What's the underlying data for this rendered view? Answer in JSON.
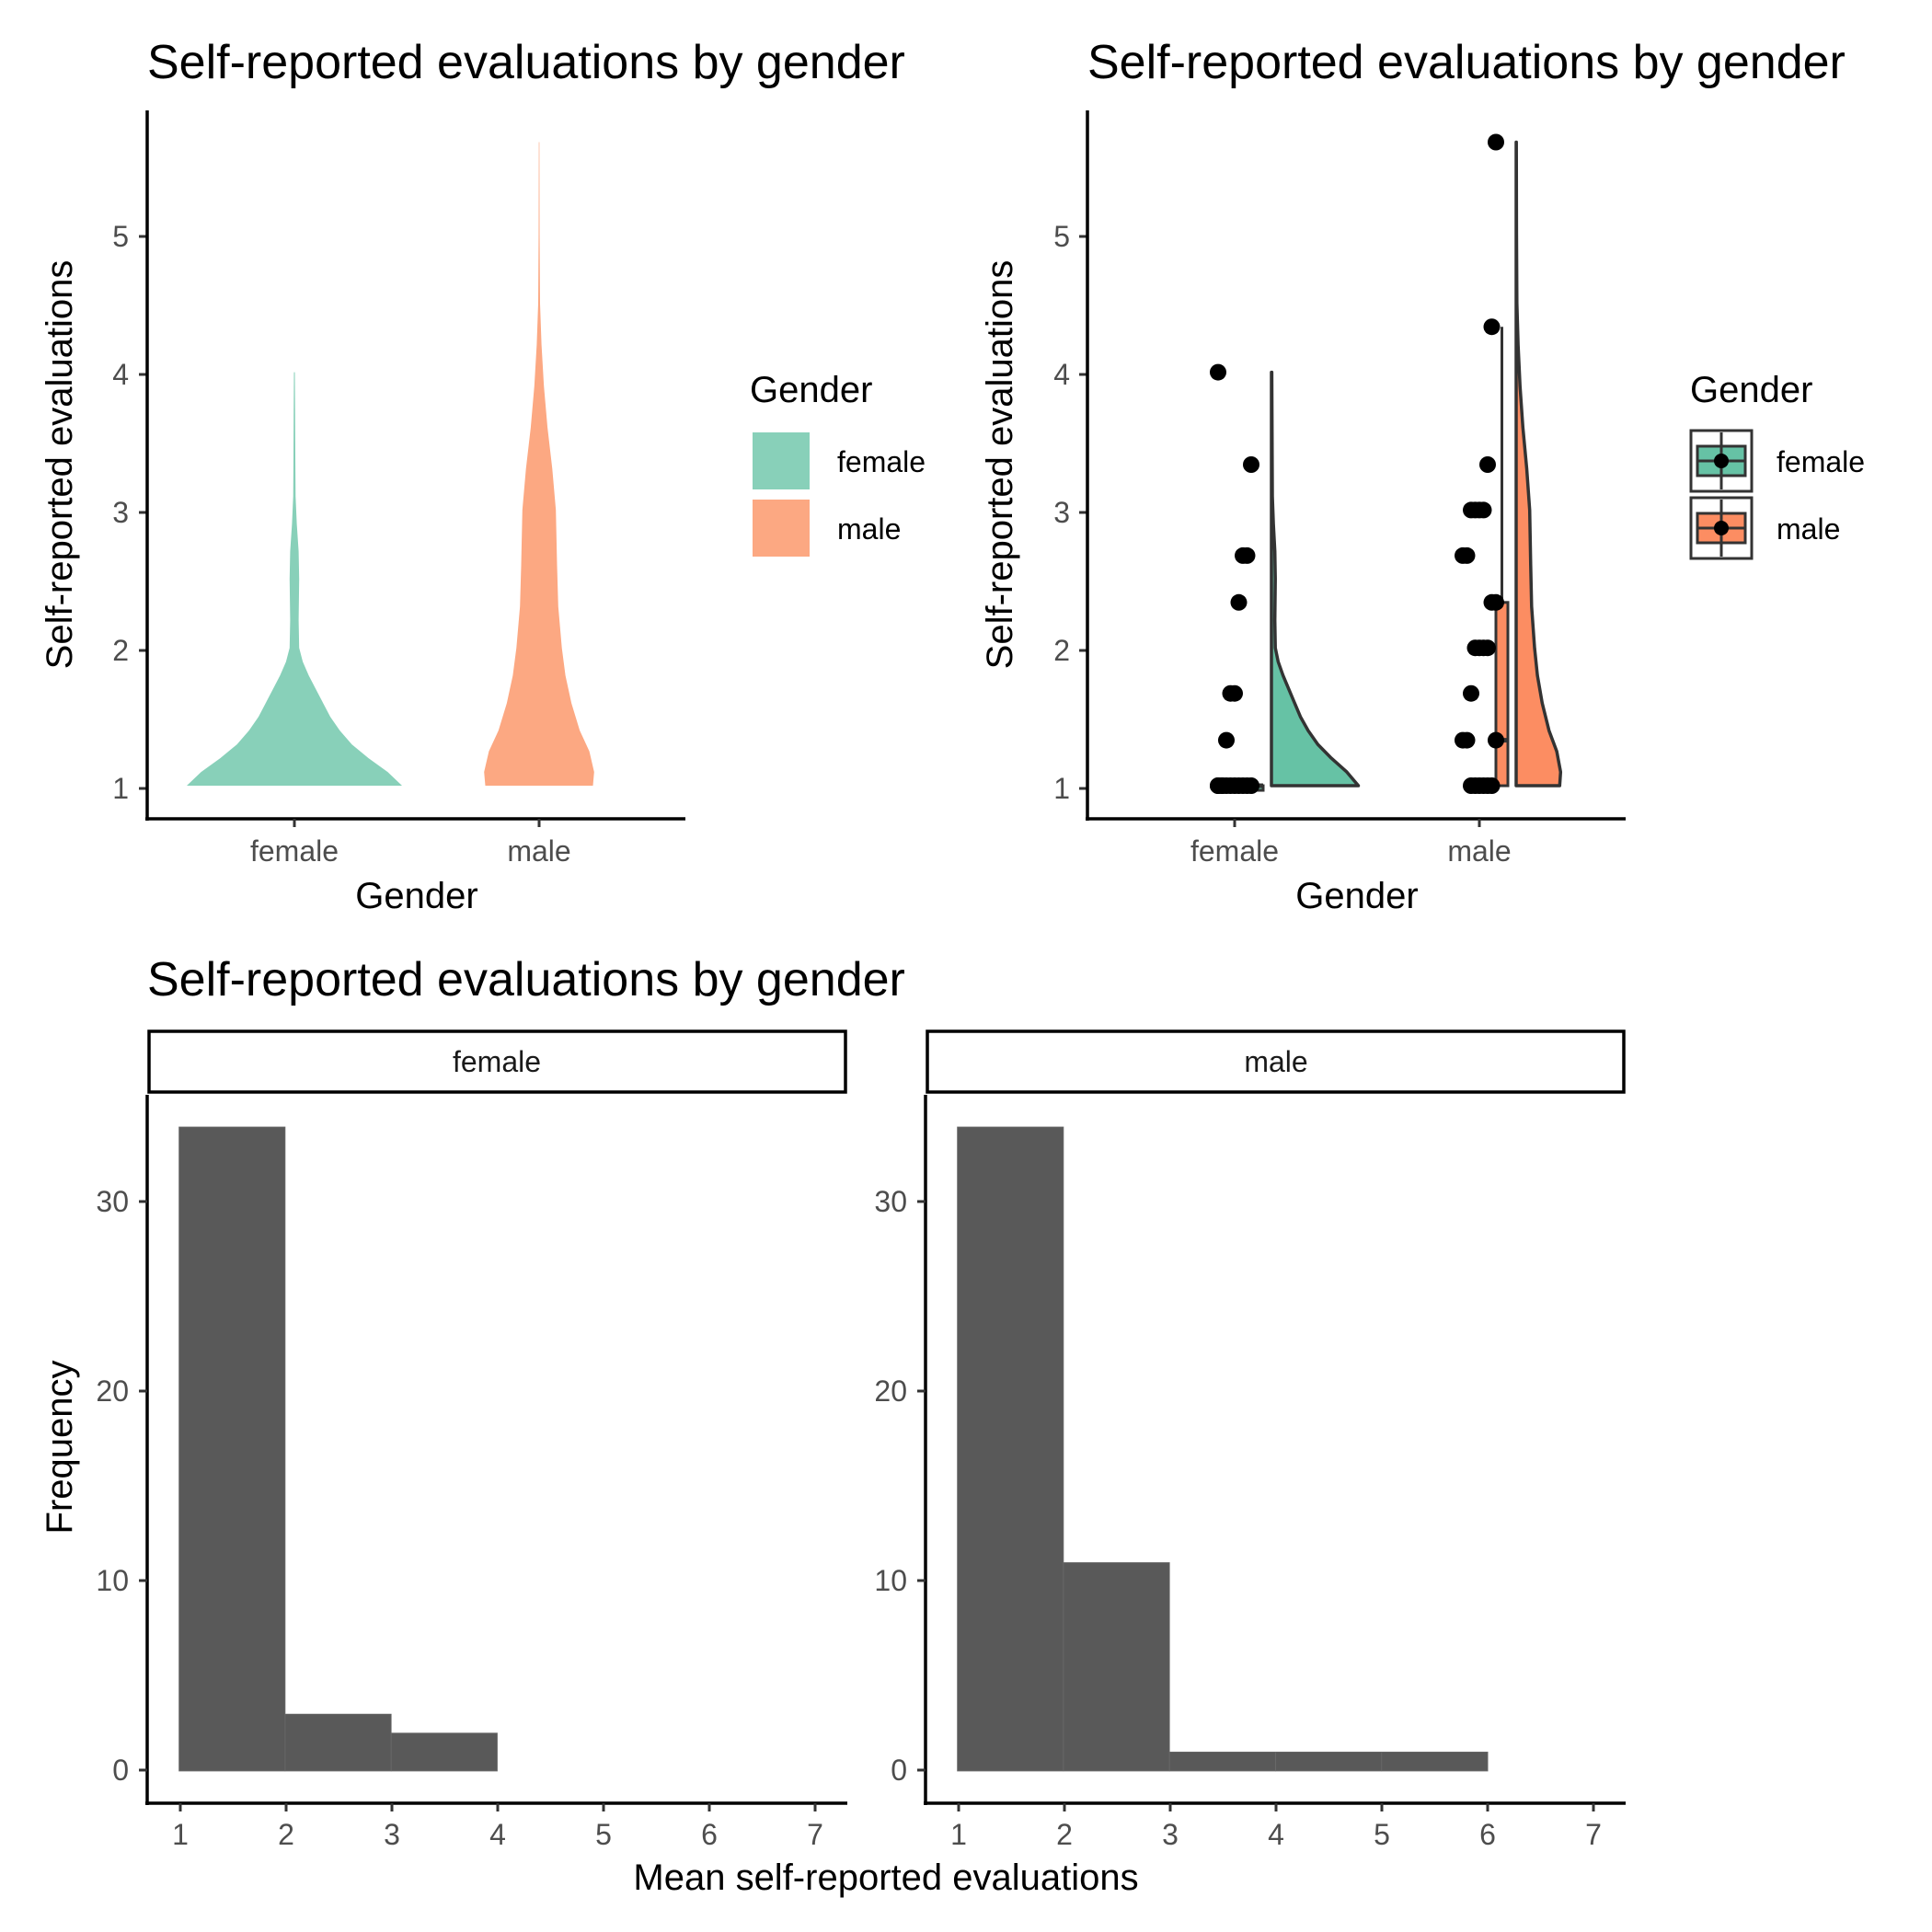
{
  "chart_data": [
    {
      "type": "violin",
      "title": "Self-reported evaluations by gender",
      "xlabel": "Gender",
      "ylabel": "Self-reported evaluations",
      "categories": [
        "female",
        "male"
      ],
      "ylim": [
        0.76,
        5.9
      ],
      "yticks": [
        "1",
        "2",
        "3",
        "4",
        "5"
      ],
      "legend": {
        "title": "Gender",
        "position": "right",
        "entries": [
          {
            "label": "female",
            "color": "#88d0b9"
          },
          {
            "label": "male",
            "color": "#fca882"
          }
        ]
      },
      "grid": false,
      "series": [
        {
          "category": "female",
          "color": "#88d0b9",
          "density": [
            [
              1.0,
              0.9
            ],
            [
              1.1,
              0.78
            ],
            [
              1.2,
              0.62
            ],
            [
              1.3,
              0.48
            ],
            [
              1.4,
              0.38
            ],
            [
              1.5,
              0.3
            ],
            [
              1.6,
              0.24
            ],
            [
              1.7,
              0.18
            ],
            [
              1.8,
              0.12
            ],
            [
              1.9,
              0.07
            ],
            [
              2.0,
              0.04
            ],
            [
              2.2,
              0.035
            ],
            [
              2.5,
              0.04
            ],
            [
              2.7,
              0.035
            ],
            [
              2.9,
              0.02
            ],
            [
              3.1,
              0.01
            ],
            [
              3.4,
              0.008
            ],
            [
              3.7,
              0.006
            ],
            [
              4.0,
              0.004
            ]
          ]
        },
        {
          "category": "male",
          "color": "#fca882",
          "density": [
            [
              1.0,
              0.45
            ],
            [
              1.1,
              0.46
            ],
            [
              1.25,
              0.42
            ],
            [
              1.4,
              0.34
            ],
            [
              1.6,
              0.27
            ],
            [
              1.8,
              0.22
            ],
            [
              2.0,
              0.19
            ],
            [
              2.3,
              0.16
            ],
            [
              2.6,
              0.15
            ],
            [
              3.0,
              0.14
            ],
            [
              3.3,
              0.11
            ],
            [
              3.6,
              0.07
            ],
            [
              3.9,
              0.04
            ],
            [
              4.2,
              0.02
            ],
            [
              4.5,
              0.008
            ],
            [
              5.0,
              0.004
            ],
            [
              5.67,
              0.002
            ]
          ]
        }
      ]
    },
    {
      "type": "raincloud",
      "title": "Self-reported evaluations by gender",
      "xlabel": "Gender",
      "ylabel": "Self-reported evaluations",
      "categories": [
        "female",
        "male"
      ],
      "ylim": [
        0.76,
        5.9
      ],
      "yticks": [
        "1",
        "2",
        "3",
        "4",
        "5"
      ],
      "legend": {
        "title": "Gender",
        "position": "right",
        "entries": [
          {
            "label": "female",
            "color": "#66c2a5"
          },
          {
            "label": "male",
            "color": "#fc8d62"
          }
        ]
      },
      "grid": false,
      "series": [
        {
          "category": "female",
          "color": "#66c2a5",
          "points": [
            1.0,
            1.0,
            1.0,
            1.0,
            1.0,
            1.0,
            1.0,
            1.0,
            1.0,
            1.0,
            1.0,
            1.33,
            1.67,
            1.67,
            2.33,
            2.67,
            2.67,
            3.33,
            4.0
          ],
          "box": {
            "min": 1.0,
            "q1": 1.0,
            "median": 1.0,
            "q3": 1.0,
            "max": 1.0
          },
          "density": [
            [
              1.0,
              0.9
            ],
            [
              1.1,
              0.78
            ],
            [
              1.2,
              0.62
            ],
            [
              1.3,
              0.48
            ],
            [
              1.4,
              0.38
            ],
            [
              1.5,
              0.3
            ],
            [
              1.6,
              0.24
            ],
            [
              1.7,
              0.18
            ],
            [
              1.8,
              0.12
            ],
            [
              1.9,
              0.07
            ],
            [
              2.0,
              0.04
            ],
            [
              2.2,
              0.035
            ],
            [
              2.5,
              0.04
            ],
            [
              2.7,
              0.035
            ],
            [
              2.9,
              0.02
            ],
            [
              3.1,
              0.01
            ],
            [
              3.4,
              0.008
            ],
            [
              3.7,
              0.006
            ],
            [
              4.0,
              0.004
            ]
          ]
        },
        {
          "category": "male",
          "color": "#fc8d62",
          "points": [
            1.0,
            1.0,
            1.0,
            1.0,
            1.0,
            1.0,
            1.33,
            1.33,
            1.33,
            1.67,
            2.0,
            2.0,
            2.0,
            2.0,
            2.33,
            2.33,
            2.67,
            2.67,
            3.0,
            3.0,
            3.0,
            3.0,
            3.33,
            4.33,
            5.67
          ],
          "box": {
            "min": 1.0,
            "q1": 1.0,
            "median": 1.33,
            "q3": 2.33,
            "max": 4.33
          },
          "density": [
            [
              1.0,
              0.45
            ],
            [
              1.1,
              0.46
            ],
            [
              1.25,
              0.42
            ],
            [
              1.4,
              0.34
            ],
            [
              1.6,
              0.27
            ],
            [
              1.8,
              0.22
            ],
            [
              2.0,
              0.19
            ],
            [
              2.3,
              0.16
            ],
            [
              2.6,
              0.15
            ],
            [
              3.0,
              0.14
            ],
            [
              3.3,
              0.11
            ],
            [
              3.6,
              0.07
            ],
            [
              3.9,
              0.04
            ],
            [
              4.2,
              0.02
            ],
            [
              4.5,
              0.008
            ],
            [
              5.0,
              0.004
            ],
            [
              5.67,
              0.002
            ]
          ]
        }
      ]
    },
    {
      "type": "bar",
      "subtype": "faceted-histogram",
      "title": "Self-reported evaluations by gender",
      "xlabel": "Mean self-reported evaluations",
      "ylabel": "Frequency",
      "xlim": [
        0.7,
        7.3
      ],
      "ylim": [
        -1.7,
        35.7
      ],
      "xticks": [
        "1",
        "2",
        "3",
        "4",
        "5",
        "6",
        "7"
      ],
      "yticks": [
        "0",
        "10",
        "20",
        "30"
      ],
      "bar_color": "#595959",
      "grid": false,
      "facets": [
        {
          "label": "female",
          "bins": [
            {
              "x0": 1,
              "x1": 2,
              "count": 34
            },
            {
              "x0": 2,
              "x1": 3,
              "count": 3
            },
            {
              "x0": 3,
              "x1": 4,
              "count": 2
            }
          ]
        },
        {
          "label": "male",
          "bins": [
            {
              "x0": 1,
              "x1": 2,
              "count": 34
            },
            {
              "x0": 2,
              "x1": 3,
              "count": 11
            },
            {
              "x0": 3,
              "x1": 4,
              "count": 1
            },
            {
              "x0": 4,
              "x1": 5,
              "count": 1
            },
            {
              "x0": 5,
              "x1": 6,
              "count": 1
            }
          ]
        }
      ]
    }
  ]
}
